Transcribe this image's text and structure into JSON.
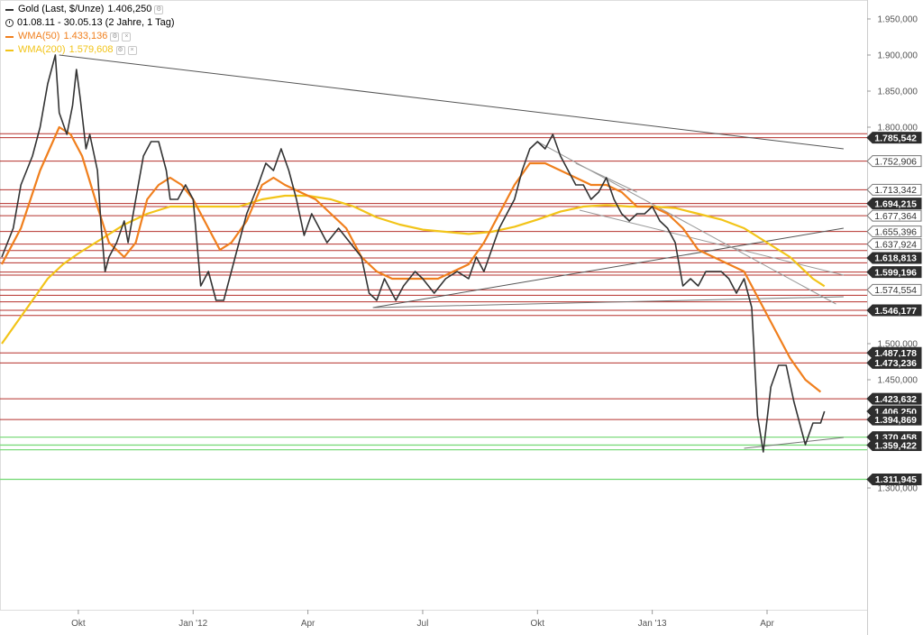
{
  "legend": {
    "main": {
      "name": "Gold (Last, $/Unze)",
      "value": "1.406,250",
      "color": "#333333"
    },
    "range": "01.08.11 - 30.05.13 (2 Jahre, 1 Tag)",
    "wma50": {
      "name": "WMA(50)",
      "value": "1.433,136",
      "color": "#f07f1d"
    },
    "wma200": {
      "name": "WMA(200)",
      "value": "1.579,608",
      "color": "#f2c418"
    }
  },
  "chart_data": {
    "type": "line",
    "x_ticks": [
      "Okt",
      "Jan '12",
      "Apr",
      "Jul",
      "Okt",
      "Jan '13",
      "Apr"
    ],
    "y_ticks": [
      "1.950,000",
      "1.900,000",
      "1.850,000",
      "1.800,000",
      "1.500,000",
      "1.450,000",
      "1.300,000"
    ],
    "ylim": [
      1290,
      1980
    ],
    "xlim": [
      0,
      22
    ],
    "month_axis": "months since 2011-08-01",
    "series": [
      {
        "name": "Gold (Last, $/Unze)",
        "color": "#333333",
        "points": [
          [
            0.0,
            1620
          ],
          [
            0.3,
            1660
          ],
          [
            0.5,
            1720
          ],
          [
            0.8,
            1760
          ],
          [
            1.0,
            1800
          ],
          [
            1.2,
            1860
          ],
          [
            1.4,
            1900
          ],
          [
            1.5,
            1820
          ],
          [
            1.7,
            1790
          ],
          [
            1.85,
            1830
          ],
          [
            1.95,
            1880
          ],
          [
            2.05,
            1840
          ],
          [
            2.2,
            1770
          ],
          [
            2.3,
            1790
          ],
          [
            2.5,
            1740
          ],
          [
            2.6,
            1660
          ],
          [
            2.7,
            1600
          ],
          [
            2.8,
            1620
          ],
          [
            3.0,
            1640
          ],
          [
            3.2,
            1670
          ],
          [
            3.3,
            1640
          ],
          [
            3.5,
            1700
          ],
          [
            3.7,
            1760
          ],
          [
            3.9,
            1780
          ],
          [
            4.1,
            1780
          ],
          [
            4.3,
            1740
          ],
          [
            4.4,
            1700
          ],
          [
            4.6,
            1700
          ],
          [
            4.8,
            1720
          ],
          [
            5.0,
            1700
          ],
          [
            5.2,
            1580
          ],
          [
            5.4,
            1600
          ],
          [
            5.6,
            1560
          ],
          [
            5.8,
            1560
          ],
          [
            6.1,
            1620
          ],
          [
            6.4,
            1680
          ],
          [
            6.7,
            1720
          ],
          [
            6.9,
            1750
          ],
          [
            7.1,
            1740
          ],
          [
            7.3,
            1770
          ],
          [
            7.5,
            1740
          ],
          [
            7.7,
            1700
          ],
          [
            7.9,
            1650
          ],
          [
            8.1,
            1680
          ],
          [
            8.3,
            1660
          ],
          [
            8.5,
            1640
          ],
          [
            8.8,
            1660
          ],
          [
            9.1,
            1640
          ],
          [
            9.4,
            1620
          ],
          [
            9.6,
            1570
          ],
          [
            9.8,
            1560
          ],
          [
            10.0,
            1590
          ],
          [
            10.3,
            1560
          ],
          [
            10.5,
            1580
          ],
          [
            10.8,
            1600
          ],
          [
            11.0,
            1590
          ],
          [
            11.3,
            1570
          ],
          [
            11.6,
            1590
          ],
          [
            11.9,
            1600
          ],
          [
            12.2,
            1590
          ],
          [
            12.4,
            1620
          ],
          [
            12.6,
            1600
          ],
          [
            12.8,
            1630
          ],
          [
            13.0,
            1660
          ],
          [
            13.2,
            1680
          ],
          [
            13.4,
            1700
          ],
          [
            13.6,
            1740
          ],
          [
            13.8,
            1770
          ],
          [
            14.0,
            1780
          ],
          [
            14.2,
            1770
          ],
          [
            14.4,
            1790
          ],
          [
            14.6,
            1760
          ],
          [
            14.8,
            1740
          ],
          [
            15.0,
            1720
          ],
          [
            15.2,
            1720
          ],
          [
            15.4,
            1700
          ],
          [
            15.6,
            1710
          ],
          [
            15.8,
            1730
          ],
          [
            16.0,
            1700
          ],
          [
            16.2,
            1680
          ],
          [
            16.4,
            1670
          ],
          [
            16.6,
            1680
          ],
          [
            16.8,
            1680
          ],
          [
            17.0,
            1690
          ],
          [
            17.2,
            1670
          ],
          [
            17.4,
            1660
          ],
          [
            17.6,
            1640
          ],
          [
            17.8,
            1580
          ],
          [
            18.0,
            1590
          ],
          [
            18.2,
            1580
          ],
          [
            18.4,
            1600
          ],
          [
            18.6,
            1600
          ],
          [
            18.8,
            1600
          ],
          [
            19.0,
            1590
          ],
          [
            19.2,
            1570
          ],
          [
            19.4,
            1590
          ],
          [
            19.6,
            1550
          ],
          [
            19.75,
            1400
          ],
          [
            19.9,
            1350
          ],
          [
            20.1,
            1440
          ],
          [
            20.3,
            1470
          ],
          [
            20.5,
            1470
          ],
          [
            20.7,
            1420
          ],
          [
            20.9,
            1380
          ],
          [
            21.0,
            1360
          ],
          [
            21.2,
            1390
          ],
          [
            21.4,
            1390
          ],
          [
            21.5,
            1406.25
          ]
        ]
      },
      {
        "name": "WMA(50)",
        "color": "#f07f1d",
        "points": [
          [
            0.0,
            1610
          ],
          [
            0.5,
            1660
          ],
          [
            1.0,
            1740
          ],
          [
            1.5,
            1800
          ],
          [
            1.8,
            1790
          ],
          [
            2.1,
            1760
          ],
          [
            2.5,
            1690
          ],
          [
            2.8,
            1640
          ],
          [
            3.2,
            1620
          ],
          [
            3.5,
            1640
          ],
          [
            3.8,
            1700
          ],
          [
            4.1,
            1720
          ],
          [
            4.4,
            1730
          ],
          [
            4.7,
            1720
          ],
          [
            5.0,
            1700
          ],
          [
            5.4,
            1660
          ],
          [
            5.7,
            1630
          ],
          [
            6.0,
            1640
          ],
          [
            6.4,
            1670
          ],
          [
            6.8,
            1720
          ],
          [
            7.1,
            1730
          ],
          [
            7.4,
            1720
          ],
          [
            7.8,
            1710
          ],
          [
            8.2,
            1700
          ],
          [
            8.6,
            1680
          ],
          [
            9.0,
            1660
          ],
          [
            9.4,
            1620
          ],
          [
            9.8,
            1600
          ],
          [
            10.2,
            1590
          ],
          [
            10.6,
            1590
          ],
          [
            11.0,
            1590
          ],
          [
            11.4,
            1590
          ],
          [
            11.8,
            1600
          ],
          [
            12.2,
            1610
          ],
          [
            12.6,
            1640
          ],
          [
            13.0,
            1680
          ],
          [
            13.4,
            1720
          ],
          [
            13.8,
            1750
          ],
          [
            14.2,
            1750
          ],
          [
            14.6,
            1740
          ],
          [
            15.0,
            1730
          ],
          [
            15.4,
            1720
          ],
          [
            15.8,
            1720
          ],
          [
            16.2,
            1710
          ],
          [
            16.6,
            1690
          ],
          [
            17.0,
            1690
          ],
          [
            17.4,
            1680
          ],
          [
            17.8,
            1660
          ],
          [
            18.2,
            1630
          ],
          [
            18.6,
            1620
          ],
          [
            19.0,
            1610
          ],
          [
            19.4,
            1600
          ],
          [
            19.8,
            1560
          ],
          [
            20.2,
            1520
          ],
          [
            20.6,
            1480
          ],
          [
            21.0,
            1450
          ],
          [
            21.4,
            1433.136
          ]
        ]
      },
      {
        "name": "WMA(200)",
        "color": "#f2c418",
        "points": [
          [
            0.0,
            1500
          ],
          [
            0.4,
            1530
          ],
          [
            0.8,
            1560
          ],
          [
            1.2,
            1590
          ],
          [
            1.6,
            1610
          ],
          [
            2.0,
            1625
          ],
          [
            2.6,
            1645
          ],
          [
            3.2,
            1665
          ],
          [
            3.8,
            1680
          ],
          [
            4.4,
            1690
          ],
          [
            5.0,
            1690
          ],
          [
            5.6,
            1690
          ],
          [
            6.2,
            1690
          ],
          [
            6.8,
            1700
          ],
          [
            7.4,
            1705
          ],
          [
            8.0,
            1705
          ],
          [
            8.6,
            1700
          ],
          [
            9.2,
            1690
          ],
          [
            9.8,
            1675
          ],
          [
            10.4,
            1665
          ],
          [
            11.0,
            1658
          ],
          [
            11.6,
            1655
          ],
          [
            12.2,
            1652
          ],
          [
            12.8,
            1655
          ],
          [
            13.4,
            1662
          ],
          [
            14.0,
            1672
          ],
          [
            14.6,
            1683
          ],
          [
            15.2,
            1690
          ],
          [
            15.8,
            1692
          ],
          [
            16.4,
            1690
          ],
          [
            17.0,
            1690
          ],
          [
            17.6,
            1688
          ],
          [
            18.2,
            1680
          ],
          [
            18.8,
            1672
          ],
          [
            19.4,
            1660
          ],
          [
            20.0,
            1640
          ],
          [
            20.6,
            1620
          ],
          [
            21.2,
            1590
          ],
          [
            21.5,
            1579.608
          ]
        ]
      }
    ],
    "trendlines": [
      {
        "color": "#555555",
        "points": [
          [
            1.5,
            1900
          ],
          [
            22.0,
            1770
          ]
        ]
      },
      {
        "color": "#555555",
        "points": [
          [
            9.7,
            1550
          ],
          [
            22.0,
            1660
          ]
        ]
      },
      {
        "color": "#777777",
        "points": [
          [
            9.7,
            1550
          ],
          [
            22.0,
            1565
          ]
        ]
      },
      {
        "color": "#999999",
        "points": [
          [
            14.0,
            1780
          ],
          [
            21.8,
            1555
          ]
        ]
      },
      {
        "color": "#999999",
        "points": [
          [
            15.0,
            1750
          ],
          [
            16.6,
            1710
          ]
        ]
      },
      {
        "color": "#999999",
        "points": [
          [
            15.1,
            1685
          ],
          [
            22.0,
            1595
          ]
        ]
      },
      {
        "color": "#777777",
        "points": [
          [
            19.4,
            1355
          ],
          [
            22.0,
            1370
          ]
        ]
      }
    ],
    "horizontal_levels": {
      "red": [
        1785.542,
        1791.0,
        1752.906,
        1713.342,
        1694.215,
        1690.0,
        1677.364,
        1655.396,
        1637.924,
        1629.0,
        1618.813,
        1612.0,
        1599.196,
        1595.0,
        1574.554,
        1567.0,
        1558.0,
        1546.177,
        1539.0,
        1487.178,
        1473.236,
        1423.632,
        1394.869
      ],
      "green": [
        1370.458,
        1359.422,
        1353.0,
        1311.945
      ]
    },
    "price_labels": [
      {
        "text": "1.785,542",
        "value": 1785.542,
        "style": "dark"
      },
      {
        "text": "1.752,906",
        "value": 1752.906,
        "style": "light"
      },
      {
        "text": "1.713,342",
        "value": 1713.342,
        "style": "light"
      },
      {
        "text": "1.694,215",
        "value": 1694.215,
        "style": "dark"
      },
      {
        "text": "1.677,364",
        "value": 1677.364,
        "style": "light"
      },
      {
        "text": "1.655,396",
        "value": 1655.396,
        "style": "light"
      },
      {
        "text": "1.637,924",
        "value": 1637.924,
        "style": "light"
      },
      {
        "text": "1.618,813",
        "value": 1618.813,
        "style": "dark"
      },
      {
        "text": "1.599,196",
        "value": 1599.196,
        "style": "dark"
      },
      {
        "text": "1.574,554",
        "value": 1574.554,
        "style": "light"
      },
      {
        "text": "1.546,177",
        "value": 1546.177,
        "style": "dark"
      },
      {
        "text": "1.487,178",
        "value": 1487.178,
        "style": "dark"
      },
      {
        "text": "1.473,236",
        "value": 1473.236,
        "style": "dark"
      },
      {
        "text": "1.423,632",
        "value": 1423.632,
        "style": "dark"
      },
      {
        "text": "1.406,250",
        "value": 1406.25,
        "style": "dark"
      },
      {
        "text": "1.394,869",
        "value": 1394.869,
        "style": "dark"
      },
      {
        "text": "1.370,458",
        "value": 1370.458,
        "style": "dark"
      },
      {
        "text": "1.359,422",
        "value": 1359.422,
        "style": "dark"
      },
      {
        "text": "1.311,945",
        "value": 1311.945,
        "style": "dark"
      }
    ],
    "grid": false
  }
}
